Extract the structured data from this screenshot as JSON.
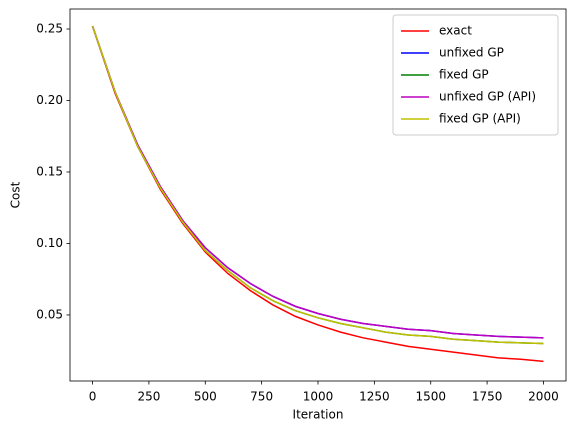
{
  "chart_data": {
    "type": "line",
    "xlabel": "Iteration",
    "ylabel": "Cost",
    "x": [
      0,
      100,
      200,
      300,
      400,
      500,
      600,
      700,
      800,
      900,
      1000,
      1100,
      1200,
      1300,
      1400,
      1500,
      1600,
      1700,
      1800,
      1900,
      2000
    ],
    "series": [
      {
        "name": "exact",
        "color": "#ff0000",
        "values": [
          0.252,
          0.205,
          0.168,
          0.138,
          0.114,
          0.094,
          0.079,
          0.067,
          0.057,
          0.049,
          0.043,
          0.038,
          0.034,
          0.031,
          0.028,
          0.026,
          0.024,
          0.022,
          0.02,
          0.019,
          0.0175
        ]
      },
      {
        "name": "unfixed GP",
        "color": "#0000ff",
        "values": [
          0.252,
          0.206,
          0.169,
          0.14,
          0.116,
          0.097,
          0.083,
          0.072,
          0.063,
          0.056,
          0.051,
          0.047,
          0.044,
          0.042,
          0.04,
          0.039,
          0.037,
          0.036,
          0.035,
          0.0345,
          0.034
        ]
      },
      {
        "name": "fixed GP",
        "color": "#008000",
        "values": [
          0.252,
          0.206,
          0.168,
          0.139,
          0.115,
          0.095,
          0.081,
          0.069,
          0.06,
          0.053,
          0.048,
          0.044,
          0.041,
          0.038,
          0.036,
          0.035,
          0.033,
          0.032,
          0.031,
          0.0305,
          0.03
        ]
      },
      {
        "name": "unfixed GP (API)",
        "color": "#bf00bf",
        "values": [
          0.252,
          0.206,
          0.169,
          0.14,
          0.116,
          0.097,
          0.083,
          0.072,
          0.063,
          0.056,
          0.051,
          0.047,
          0.044,
          0.042,
          0.04,
          0.039,
          0.037,
          0.036,
          0.035,
          0.0345,
          0.034
        ]
      },
      {
        "name": "fixed GP (API)",
        "color": "#bfbf00",
        "values": [
          0.252,
          0.206,
          0.168,
          0.139,
          0.115,
          0.095,
          0.081,
          0.069,
          0.06,
          0.053,
          0.048,
          0.044,
          0.041,
          0.038,
          0.036,
          0.035,
          0.033,
          0.032,
          0.031,
          0.0305,
          0.03
        ]
      }
    ],
    "xlim": [
      -100,
      2100
    ],
    "ylim": [
      0.0038,
      0.264
    ],
    "xticks": [
      0,
      250,
      500,
      750,
      1000,
      1250,
      1500,
      1750,
      2000
    ],
    "yticks": [
      0.05,
      {
        "value": 0.1,
        "label": "0.10"
      },
      0.15,
      {
        "value": 0.2,
        "label": "0.20"
      },
      0.25
    ],
    "grid": false,
    "legend": "upper right"
  }
}
